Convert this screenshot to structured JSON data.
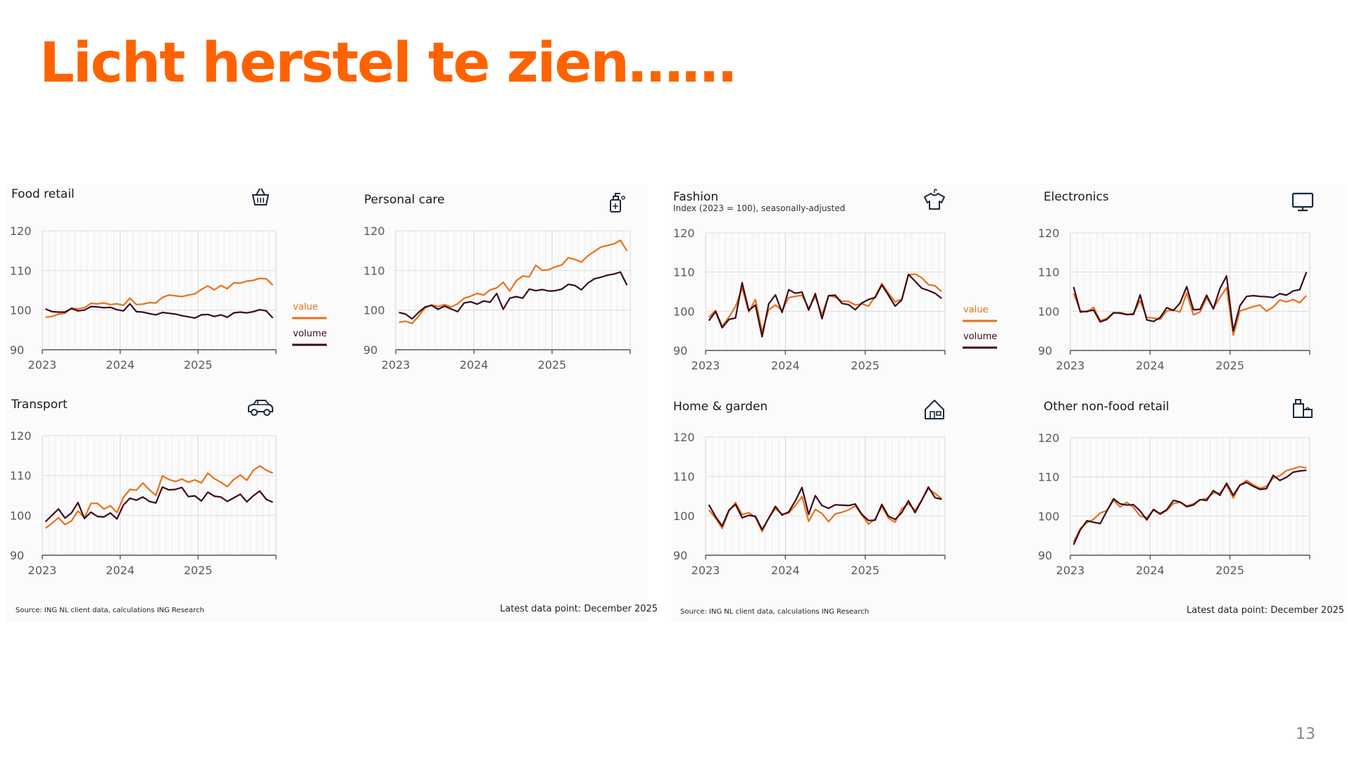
{
  "slide": {
    "title": "Licht herstel te zien……",
    "page_number": "13"
  },
  "colors": {
    "title": "#FF6200",
    "value_series": "#E8701A",
    "volume_series": "#3B0A1E",
    "grid": "#e8e8e8",
    "axis": "#555555"
  },
  "legend": {
    "value_label": "value",
    "volume_label": "volume"
  },
  "footnotes": {
    "source_left": "Source: ING NL client data, calculations ING Research",
    "latest_left": "Latest data point: December 2025",
    "source_right": "Source: ING NL client data, calculations ING Research",
    "latest_right": "Latest data point: December 2025"
  },
  "chart_data": [
    {
      "id": "food-retail",
      "type": "line",
      "title": "Food retail",
      "subtitle": "",
      "icon": "basket-icon",
      "x_tick_labels": [
        "2023",
        "2024",
        "2025"
      ],
      "y_ticks": [
        90,
        100,
        110,
        120
      ],
      "ylim": [
        90,
        120
      ],
      "n_points": 36,
      "show_legend": true,
      "series": [
        {
          "name": "value",
          "values": [
            98.2,
            98.4,
            99.0,
            99.2,
            100.5,
            100.3,
            100.6,
            101.7,
            101.6,
            101.8,
            101.4,
            101.6,
            101.2,
            103.0,
            101.4,
            101.5,
            101.9,
            101.8,
            103.2,
            103.8,
            103.6,
            103.4,
            103.8,
            104.1,
            105.2,
            106.1,
            105.1,
            106.2,
            105.4,
            106.9,
            106.8,
            107.3,
            107.5,
            108.0,
            107.9,
            106.3
          ]
        },
        {
          "name": "volume",
          "values": [
            100.3,
            99.6,
            99.5,
            99.5,
            100.4,
            99.8,
            100.0,
            100.9,
            100.8,
            100.6,
            100.7,
            100.1,
            99.8,
            101.6,
            99.6,
            99.5,
            99.1,
            98.8,
            99.4,
            99.2,
            99.0,
            98.6,
            98.3,
            98.0,
            98.8,
            98.9,
            98.4,
            98.8,
            98.2,
            99.3,
            99.5,
            99.3,
            99.6,
            100.1,
            99.8,
            98.0
          ]
        }
      ]
    },
    {
      "id": "personal-care",
      "type": "line",
      "title": "Personal care",
      "subtitle": "",
      "icon": "sanitizer-icon",
      "x_tick_labels": [
        "2023",
        "2024",
        "2025"
      ],
      "y_ticks": [
        90,
        100,
        110,
        120
      ],
      "ylim": [
        90,
        120
      ],
      "n_points": 36,
      "show_legend": false,
      "series": [
        {
          "name": "value",
          "values": [
            96.9,
            97.2,
            96.6,
            98.5,
            100.5,
            101.3,
            100.9,
            101.4,
            100.8,
            101.6,
            103.0,
            103.5,
            104.2,
            103.8,
            105.1,
            105.6,
            107.0,
            104.8,
            107.4,
            108.6,
            108.4,
            111.3,
            110.0,
            110.2,
            110.9,
            111.4,
            113.2,
            112.8,
            112.1,
            113.7,
            114.8,
            115.9,
            116.3,
            116.7,
            117.6,
            114.9
          ]
        },
        {
          "name": "volume",
          "values": [
            99.4,
            99.0,
            97.8,
            99.4,
            100.8,
            101.2,
            100.2,
            101.0,
            100.3,
            99.6,
            101.8,
            102.1,
            101.5,
            102.3,
            102.0,
            104.2,
            100.2,
            103.0,
            103.4,
            103.0,
            105.3,
            104.9,
            105.2,
            104.8,
            104.9,
            105.3,
            106.5,
            106.2,
            105.1,
            106.8,
            107.9,
            108.3,
            108.8,
            109.1,
            109.6,
            106.3
          ]
        }
      ]
    },
    {
      "id": "fashion",
      "type": "line",
      "title": "Fashion",
      "subtitle": "Index (2023 = 100), seasonally-adjusted",
      "icon": "shirt-icon",
      "x_tick_labels": [
        "2023",
        "2024",
        "2025"
      ],
      "y_ticks": [
        90,
        100,
        110,
        120
      ],
      "ylim": [
        90,
        120
      ],
      "n_points": 36,
      "show_legend": true,
      "series": [
        {
          "name": "value",
          "values": [
            98.5,
            100.2,
            96.2,
            98.5,
            101.2,
            105.9,
            99.8,
            103.0,
            94.8,
            100.4,
            101.6,
            100.2,
            103.5,
            103.8,
            104.1,
            100.8,
            103.7,
            99.1,
            104.0,
            103.6,
            102.6,
            102.5,
            101.6,
            101.9,
            101.3,
            103.7,
            107.1,
            104.6,
            102.4,
            103.1,
            109.3,
            109.5,
            108.6,
            106.8,
            106.5,
            105.0
          ]
        },
        {
          "name": "volume",
          "values": [
            97.6,
            99.9,
            95.8,
            97.9,
            98.3,
            107.3,
            100.2,
            101.6,
            93.5,
            101.9,
            104.2,
            99.7,
            105.5,
            104.6,
            104.9,
            100.3,
            104.5,
            98.1,
            104.0,
            104.1,
            102.0,
            101.7,
            100.4,
            102.1,
            103.0,
            103.5,
            106.7,
            104.1,
            101.3,
            102.9,
            109.4,
            107.7,
            105.9,
            105.3,
            104.6,
            103.3
          ]
        }
      ]
    },
    {
      "id": "electronics",
      "type": "line",
      "title": "Electronics",
      "subtitle": "",
      "icon": "monitor-icon",
      "x_tick_labels": [
        "2023",
        "2024",
        "2025"
      ],
      "y_ticks": [
        90,
        100,
        110,
        120
      ],
      "ylim": [
        90,
        120
      ],
      "n_points": 36,
      "show_legend": false,
      "series": [
        {
          "name": "value",
          "values": [
            104.5,
            100.1,
            99.8,
            101.0,
            97.6,
            98.2,
            99.7,
            99.4,
            99.1,
            99.5,
            102.7,
            98.4,
            98.3,
            97.9,
            100.1,
            100.3,
            99.8,
            104.7,
            99.1,
            99.8,
            103.4,
            100.8,
            103.5,
            106.0,
            93.9,
            100.1,
            100.6,
            101.2,
            101.6,
            100.0,
            101.1,
            102.9,
            102.4,
            103.0,
            102.2,
            104.0
          ]
        },
        {
          "name": "volume",
          "values": [
            106.2,
            99.8,
            100.0,
            100.3,
            97.3,
            97.9,
            99.6,
            99.6,
            99.2,
            99.2,
            104.2,
            97.8,
            97.4,
            98.4,
            100.9,
            100.2,
            102.1,
            106.3,
            100.4,
            100.5,
            104.1,
            100.6,
            105.8,
            109.0,
            95.0,
            101.4,
            103.8,
            104.0,
            103.8,
            103.7,
            103.5,
            104.5,
            104.1,
            105.2,
            105.5,
            110.0
          ]
        }
      ]
    },
    {
      "id": "transport",
      "type": "line",
      "title": "Transport",
      "subtitle": "",
      "icon": "car-icon",
      "x_tick_labels": [
        "2023",
        "2024",
        "2025"
      ],
      "y_ticks": [
        90,
        100,
        110,
        120
      ],
      "ylim": [
        90,
        120
      ],
      "n_points": 36,
      "show_legend": false,
      "series": [
        {
          "name": "value",
          "values": [
            96.8,
            98.0,
            99.4,
            97.7,
            98.6,
            101.1,
            99.4,
            103.0,
            103.0,
            101.6,
            102.4,
            100.7,
            104.5,
            106.5,
            106.3,
            108.1,
            106.4,
            105.0,
            109.9,
            109.0,
            108.5,
            109.1,
            108.3,
            108.9,
            108.1,
            110.6,
            109.2,
            108.3,
            107.2,
            109.0,
            110.1,
            108.8,
            111.3,
            112.4,
            111.3,
            110.6
          ]
        },
        {
          "name": "volume",
          "values": [
            98.4,
            100.0,
            101.6,
            99.3,
            100.6,
            103.2,
            99.2,
            100.8,
            99.7,
            99.6,
            100.6,
            99.1,
            102.6,
            104.3,
            103.8,
            104.6,
            103.5,
            103.1,
            107.1,
            106.4,
            106.5,
            107.0,
            104.7,
            104.9,
            103.6,
            105.8,
            104.8,
            104.6,
            103.5,
            104.4,
            105.3,
            103.4,
            104.9,
            106.1,
            104.0,
            103.3
          ]
        }
      ]
    },
    {
      "id": "home-garden",
      "type": "line",
      "title": "Home & garden",
      "subtitle": "",
      "icon": "house-icon",
      "x_tick_labels": [
        "2023",
        "2024",
        "2025"
      ],
      "y_ticks": [
        90,
        100,
        110,
        120
      ],
      "ylim": [
        90,
        120
      ],
      "n_points": 36,
      "show_legend": false,
      "series": [
        {
          "name": "value",
          "values": [
            101.5,
            99.4,
            96.8,
            101.2,
            103.4,
            100.3,
            100.8,
            99.6,
            96.0,
            99.5,
            101.8,
            100.4,
            100.7,
            102.6,
            104.9,
            98.6,
            101.6,
            100.6,
            98.5,
            100.5,
            100.9,
            101.5,
            102.5,
            100.2,
            97.9,
            99.2,
            102.4,
            99.4,
            98.4,
            101.8,
            103.1,
            101.4,
            104.0,
            106.9,
            105.7,
            104.3
          ]
        },
        {
          "name": "volume",
          "values": [
            102.8,
            99.8,
            97.4,
            101.4,
            102.9,
            99.5,
            100.1,
            99.9,
            96.5,
            99.4,
            102.4,
            100.2,
            101.0,
            103.8,
            107.2,
            100.4,
            105.1,
            102.6,
            101.9,
            102.8,
            102.7,
            102.6,
            103.0,
            100.4,
            98.8,
            98.9,
            102.9,
            99.9,
            99.1,
            100.8,
            103.8,
            100.8,
            103.9,
            107.3,
            104.6,
            104.2
          ]
        }
      ]
    },
    {
      "id": "other-non-food-retail",
      "type": "line",
      "title": "Other non-food retail",
      "subtitle": "",
      "icon": "shopping-bag-icon",
      "x_tick_labels": [
        "2023",
        "2024",
        "2025"
      ],
      "y_ticks": [
        90,
        100,
        110,
        120
      ],
      "ylim": [
        90,
        120
      ],
      "n_points": 36,
      "show_legend": false,
      "series": [
        {
          "name": "value",
          "values": [
            93.4,
            96.8,
            98.3,
            99.2,
            100.8,
            101.4,
            104.0,
            102.3,
            103.5,
            102.2,
            100.0,
            99.6,
            101.5,
            100.4,
            101.4,
            103.2,
            103.5,
            102.6,
            103.1,
            104.1,
            104.5,
            105.9,
            105.9,
            107.9,
            104.6,
            107.9,
            109.1,
            108.0,
            107.1,
            107.6,
            109.7,
            110.3,
            111.6,
            112.1,
            112.6,
            112.3
          ]
        },
        {
          "name": "volume",
          "values": [
            92.7,
            96.5,
            98.8,
            98.4,
            98.1,
            101.3,
            104.4,
            103.1,
            102.8,
            102.9,
            101.3,
            99.0,
            101.7,
            100.6,
            101.6,
            104.0,
            103.6,
            102.4,
            102.8,
            104.2,
            104.0,
            106.5,
            105.3,
            108.4,
            105.3,
            107.9,
            108.6,
            107.6,
            106.8,
            107.0,
            110.4,
            109.1,
            109.9,
            111.2,
            111.5,
            111.7
          ]
        }
      ]
    }
  ]
}
